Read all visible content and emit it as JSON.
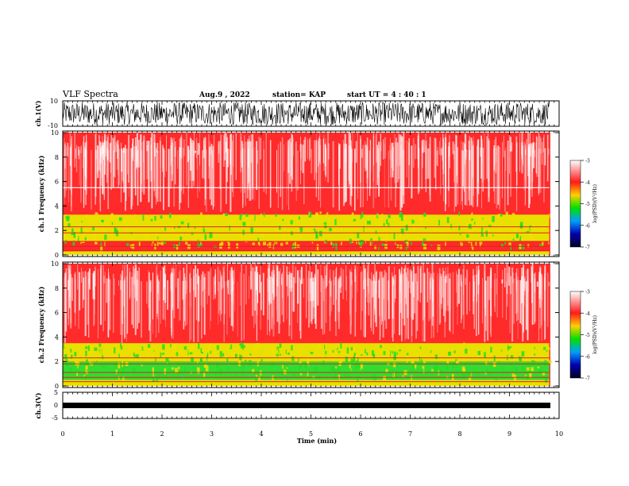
{
  "header": {
    "title": "VLF Spectra",
    "date": "Aug.9 , 2022",
    "station": "station= KAP",
    "start": "start UT = 4 : 40 : 1"
  },
  "colorbar": {
    "label": "log(PSD)(V²/Hz)",
    "ticks": [
      "-3",
      "-4",
      "-5",
      "-6",
      "-7"
    ],
    "colors": [
      "#ffffff",
      "#ff2020",
      "#ffd000",
      "#00e000",
      "#00a0ff",
      "#0000a0",
      "#000030"
    ]
  },
  "chart_data": [
    {
      "type": "line",
      "id": "ch1-waveform",
      "ylabel": "ch.1(V)",
      "ylim": [
        -10,
        10
      ],
      "yticks": [
        "10",
        "-10"
      ],
      "x": [
        0,
        0.5,
        1,
        1.5,
        2,
        2.5,
        3,
        3.5,
        4,
        4.5,
        5,
        5.5,
        6,
        6.5,
        7,
        7.5,
        8,
        8.5,
        9,
        9.5,
        9.8
      ],
      "y_min": [
        -9,
        -8,
        -9,
        -8,
        -9,
        -8,
        -9,
        -8,
        -9,
        -8,
        -9,
        -8,
        -9,
        -8,
        -9,
        -8,
        -9,
        -8,
        -9,
        -8,
        -9
      ],
      "y_max": [
        9,
        8,
        9,
        8,
        9,
        8,
        9,
        8,
        9,
        8,
        9,
        8,
        9,
        8,
        9,
        8,
        9,
        8,
        9,
        8,
        9
      ]
    },
    {
      "type": "heatmap",
      "id": "ch1-spectrogram",
      "ylabel": "ch.1 Frequency (kHz)",
      "ylim": [
        0,
        10
      ],
      "yticks": [
        "10",
        "8",
        "6",
        "4",
        "2",
        "0"
      ],
      "xlim": [
        0,
        9.8
      ],
      "bands_khz": [
        {
          "from": 0,
          "to": 0.3,
          "level": "yellow"
        },
        {
          "from": 0.3,
          "to": 1.1,
          "level": "red"
        },
        {
          "from": 1.1,
          "to": 3.3,
          "level": "yellow"
        },
        {
          "from": 3.3,
          "to": 10,
          "level": "red"
        }
      ],
      "whistle_line_khz": 5.5
    },
    {
      "type": "heatmap",
      "id": "ch2-spectrogram",
      "ylabel": "ch.2 Frequency (kHz)",
      "ylim": [
        0,
        10
      ],
      "yticks": [
        "10",
        "8",
        "6",
        "4",
        "2",
        "0"
      ],
      "xlim": [
        0,
        9.8
      ],
      "bands_khz": [
        {
          "from": 0,
          "to": 0.5,
          "level": "yellow"
        },
        {
          "from": 0.5,
          "to": 2.0,
          "level": "green"
        },
        {
          "from": 2.0,
          "to": 3.5,
          "level": "yellow"
        },
        {
          "from": 3.5,
          "to": 10,
          "level": "red"
        }
      ]
    },
    {
      "type": "line",
      "id": "ch3-waveform",
      "ylabel": "ch.3(V)",
      "ylim": [
        -5,
        5
      ],
      "yticks": [
        "5",
        "0",
        "-5"
      ],
      "x": [
        0,
        9.8
      ],
      "y_min": [
        -1.8,
        -1.8
      ],
      "y_max": [
        -0.8,
        -0.8
      ]
    }
  ],
  "xaxis": {
    "xlabel": "Time (min)",
    "xlim": [
      0,
      10
    ],
    "ticks": [
      "0",
      "1",
      "2",
      "3",
      "4",
      "5",
      "6",
      "7",
      "8",
      "9",
      "10"
    ]
  }
}
